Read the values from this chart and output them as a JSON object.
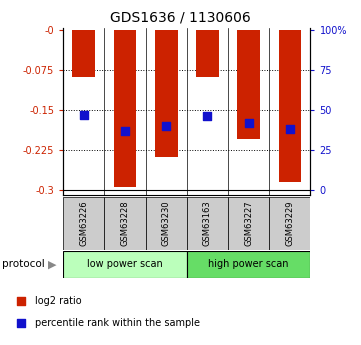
{
  "title": "GDS1636 / 1130606",
  "samples": [
    "GSM63226",
    "GSM63228",
    "GSM63230",
    "GSM63163",
    "GSM63227",
    "GSM63229"
  ],
  "log2_ratio": [
    -0.088,
    -0.295,
    -0.238,
    -0.088,
    -0.205,
    -0.285
  ],
  "percentile_rank": [
    47,
    37,
    40,
    46,
    42,
    38
  ],
  "bar_color": "#cc2200",
  "dot_color": "#1111cc",
  "ymin": -0.31,
  "ymax": 0.005,
  "left_yticks": [
    0.0,
    -0.075,
    -0.15,
    -0.225,
    -0.3
  ],
  "left_ylabels": [
    "-0",
    "-0.075",
    "-0.15",
    "-0.225",
    "-0.3"
  ],
  "right_ylabels": [
    "100%",
    "75",
    "50",
    "25",
    "0"
  ],
  "legend_log2": "log2 ratio",
  "legend_percentile": "percentile rank within the sample",
  "protocol_label": "protocol",
  "low_power_color": "#bbffbb",
  "high_power_color": "#66dd66",
  "sample_box_color": "#cccccc",
  "background_color": "#ffffff"
}
